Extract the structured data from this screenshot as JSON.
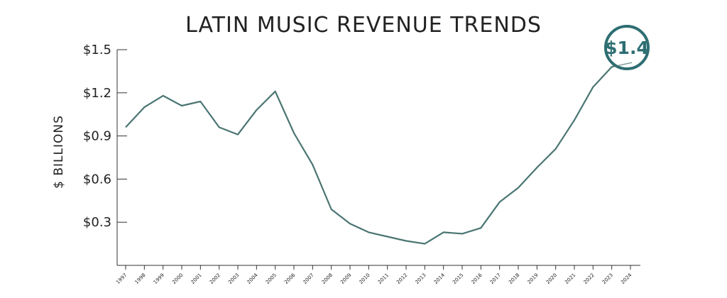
{
  "chart_data": {
    "type": "line",
    "title": "LATIN MUSIC REVENUE TRENDS",
    "ylabel": "$ BILLIONS",
    "xlabel": "",
    "ylim": [
      0,
      1.5
    ],
    "yticks": [
      0.3,
      0.6,
      0.9,
      1.2,
      1.5
    ],
    "ytick_labels": [
      "$0.3",
      "$0.6",
      "$0.9",
      "$1.2",
      "$1.5"
    ],
    "x": [
      "1997",
      "1998",
      "1999",
      "2000",
      "2001",
      "2002",
      "2003",
      "2004",
      "2005",
      "2006",
      "2007",
      "2008",
      "2009",
      "2010",
      "2011",
      "2012",
      "2013",
      "2014",
      "2015",
      "2016",
      "2017",
      "2018",
      "2019",
      "2020",
      "2021",
      "2022",
      "2023",
      "2024"
    ],
    "series": [
      {
        "values": [
          0.96,
          1.1,
          1.18,
          1.11,
          1.14,
          0.96,
          0.91,
          1.08,
          1.21,
          0.92,
          0.7,
          0.39,
          0.29,
          0.23,
          0.2,
          0.17,
          0.15,
          0.23,
          0.22,
          0.26,
          0.44,
          0.54,
          0.68,
          0.81,
          1.01,
          1.24,
          1.38,
          1.42
        ]
      }
    ],
    "annotation": {
      "label": "$1.4",
      "x": "2024",
      "y": 1.4
    },
    "grid": false,
    "legend": "none",
    "colors": {
      "line": "#4a7572",
      "callout": "#2e6e72",
      "axis": "#333333"
    }
  }
}
